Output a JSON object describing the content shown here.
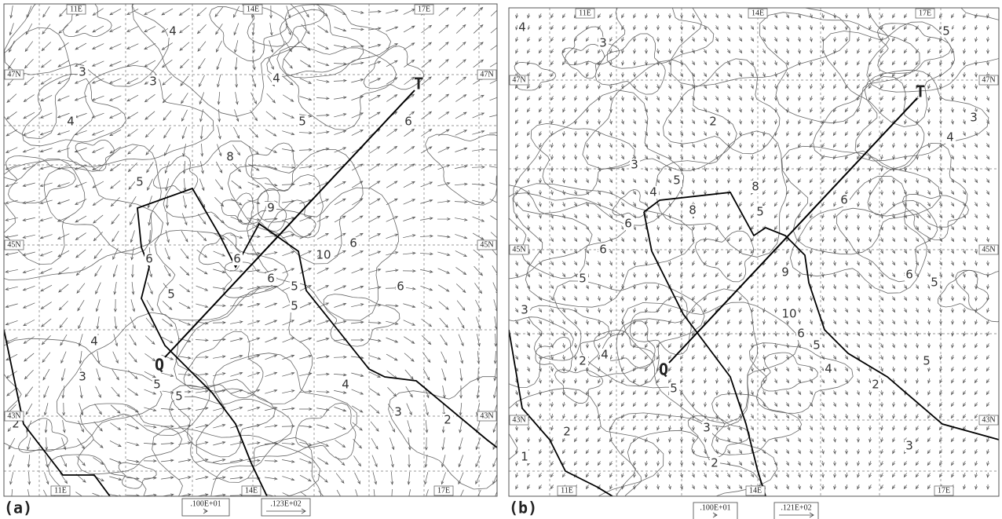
{
  "panels": [
    {
      "label": "(a)",
      "lon_labels_top": [
        "11E",
        "14E",
        "17E"
      ],
      "lon_labels_bottom": [
        "11E",
        "14E",
        "17E"
      ],
      "lat_labels_left": [
        "47N",
        "45N",
        "43N"
      ],
      "lat_labels_right": [
        "47N",
        "45N",
        "43N"
      ],
      "points": [
        "Q",
        "T"
      ],
      "reference_vectors": [
        ".100E+01",
        ".123E+02"
      ],
      "contour_labels": [
        "4",
        "3",
        "3",
        "4",
        "4",
        "5",
        "8",
        "5",
        "9",
        "6",
        "6",
        "10",
        "6",
        "6",
        "5",
        "5",
        "6",
        "5",
        "4",
        "3",
        "4",
        "5",
        "2",
        "3",
        "2",
        "5",
        "6"
      ]
    },
    {
      "label": "(b)",
      "lon_labels_top": [
        "11E",
        "14E",
        "17E"
      ],
      "lon_labels_bottom": [
        "11E",
        "14E",
        "17E"
      ],
      "lat_labels_left": [
        "47N",
        "45N",
        "43N"
      ],
      "lat_labels_right": [
        "47N",
        "45N",
        "43N"
      ],
      "points": [
        "Q",
        "T"
      ],
      "reference_vectors": [
        ".100E+01",
        ".121E+02"
      ],
      "contour_labels": [
        "4",
        "3",
        "5",
        "2",
        "3",
        "4",
        "5",
        "8",
        "8",
        "5",
        "6",
        "6",
        "5",
        "6",
        "9",
        "10",
        "6",
        "5",
        "4",
        "2",
        "4",
        "5",
        "3",
        "2",
        "1",
        "2",
        "3",
        "3",
        "2",
        "5",
        "6",
        "5",
        "3",
        "4"
      ]
    }
  ]
}
